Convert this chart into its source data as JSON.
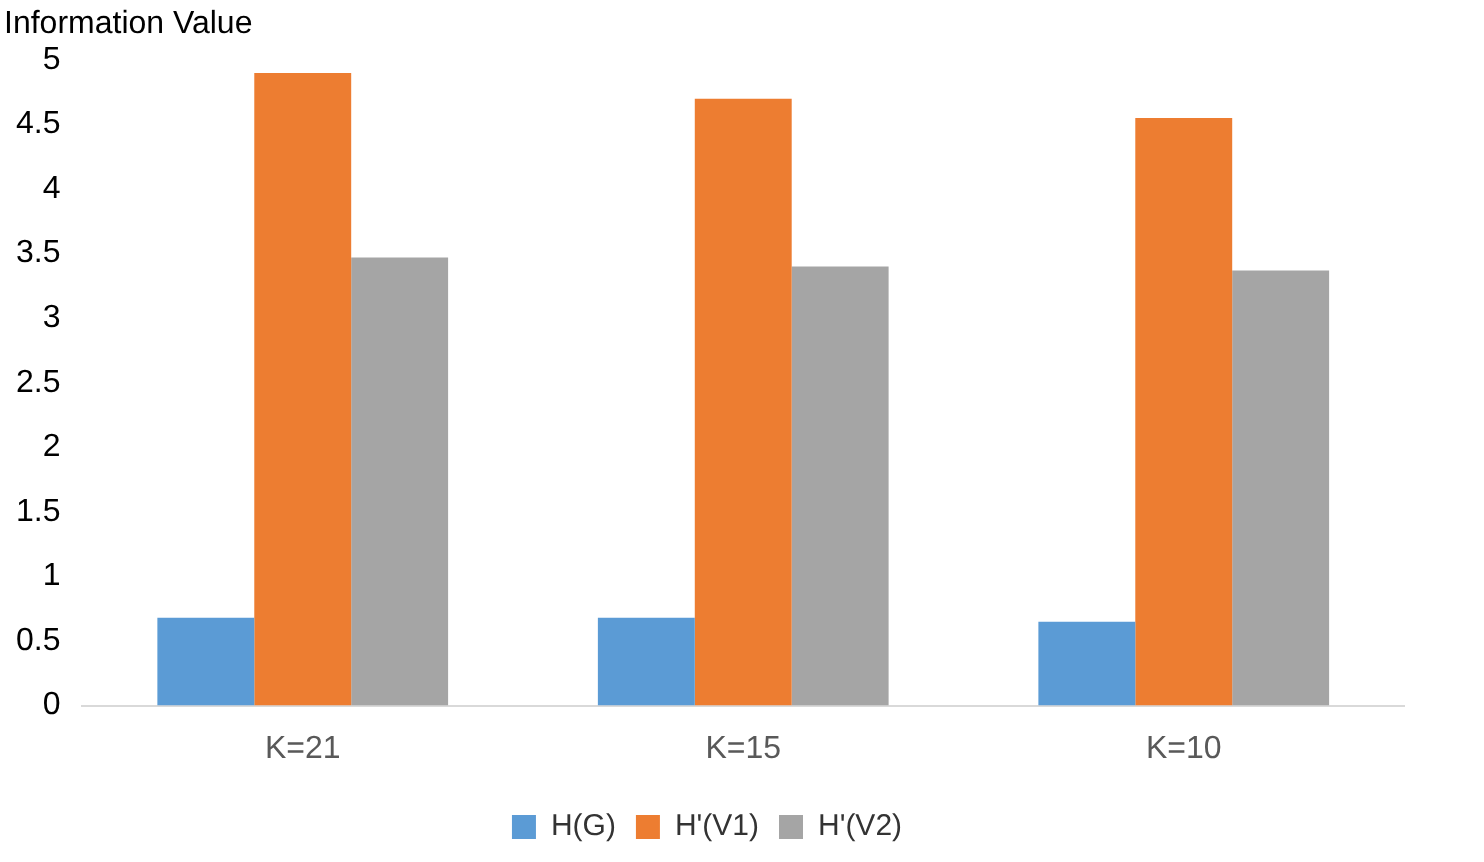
{
  "chart_data": {
    "type": "bar",
    "ylabel": "Information Value",
    "categories": [
      "K=21",
      "K=15",
      "K=10"
    ],
    "series": [
      {
        "name": "H(G)",
        "color": "#5b9bd5",
        "values": [
          0.68,
          0.68,
          0.65
        ]
      },
      {
        "name": "H'(V1)",
        "color": "#ed7d31",
        "values": [
          4.9,
          4.7,
          4.55
        ]
      },
      {
        "name": "H'(V2)",
        "color": "#a5a5a5",
        "values": [
          3.47,
          3.4,
          3.37
        ]
      }
    ],
    "ylim": [
      0,
      5
    ],
    "yticks": [
      0,
      0.5,
      1,
      1.5,
      2,
      2.5,
      3,
      3.5,
      4,
      4.5,
      5
    ],
    "grid": false,
    "legend": "bottom"
  }
}
